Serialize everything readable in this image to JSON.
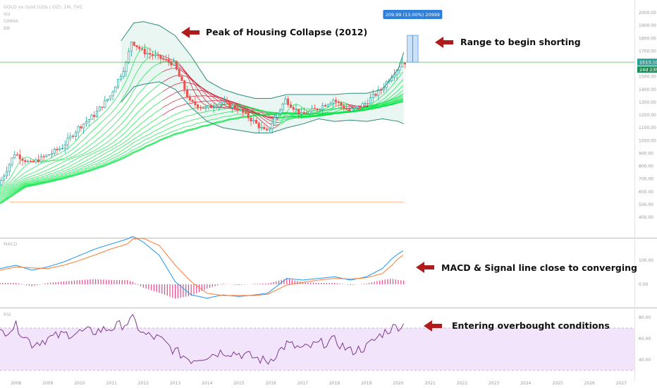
{
  "header": {
    "symbol": "GOLD vs Gold (US$ / OZ), 1M, TVC",
    "line2": "Vol",
    "line3": "GMMA",
    "line4": "BB"
  },
  "colors": {
    "up": "#26a69a",
    "down": "#ef5350",
    "ribbon_green": "#00e640",
    "ribbon_red": "#c8102e",
    "bb_line": "#2e8b7a",
    "macd": "#2196f3",
    "signal": "#ff7a33",
    "hist": "#e0488b",
    "rsi": "#7e3a8f",
    "rsi_band": "#f1e4fb",
    "arrow": "#b01c1c",
    "price_tag": "#26a69a",
    "measure": "#2f7fdc"
  },
  "price_axis": {
    "labels": [
      "2000.00",
      "1900.00",
      "1800.00",
      "1700.00",
      "1600.00",
      "1500.00",
      "1400.00",
      "1300.00",
      "1200.00",
      "1100.00",
      "1000.00",
      "900.00",
      "800.00",
      "700.00",
      "600.00",
      "500.00",
      "400.00"
    ]
  },
  "price_tag": {
    "value": "1613.10",
    "countdown": "24d 23h"
  },
  "measure_label": "209.99 (13.00%) 20999",
  "macd_panel": {
    "title": "MACD",
    "axis": [
      "100.00",
      "0.00"
    ]
  },
  "rsi_panel": {
    "title": "RSI",
    "axis": [
      "80.00",
      "60.00",
      "40.00"
    ]
  },
  "x_axis": {
    "labels": [
      "2008",
      "2009",
      "2010",
      "2011",
      "2012",
      "2013",
      "2014",
      "2015",
      "2016",
      "2017",
      "2018",
      "2019",
      "2020",
      "2021",
      "2022",
      "2023",
      "2024",
      "2025",
      "2026",
      "2027"
    ]
  },
  "annotations": {
    "peak": "Peak of Housing Collapse (2012)",
    "range": "Range to begin shorting",
    "macd": "MACD & Signal line close to converging",
    "rsi": "Entering overbought conditions"
  },
  "chart_data": {
    "type": "line",
    "title": "GOLD vs Gold (US$ / OZ), 1M, TVC",
    "x": [
      2007.5,
      2008.0,
      2008.5,
      2009.0,
      2009.5,
      2010.0,
      2010.5,
      2011.0,
      2011.5,
      2011.67,
      2012.0,
      2012.5,
      2013.0,
      2013.5,
      2014.0,
      2014.5,
      2015.0,
      2015.5,
      2015.9,
      2016.5,
      2017.0,
      2017.5,
      2018.0,
      2018.5,
      2019.0,
      2019.5,
      2019.8,
      2020.0,
      2020.17
    ],
    "series": [
      {
        "values": [
          650,
          900,
          820,
          880,
          950,
          1100,
          1200,
          1350,
          1600,
          1780,
          1700,
          1650,
          1600,
          1300,
          1250,
          1300,
          1250,
          1150,
          1060,
          1320,
          1200,
          1250,
          1320,
          1230,
          1290,
          1400,
          1500,
          1560,
          1613
        ]
      }
    ],
    "ylim": [
      400,
      2050
    ],
    "price_levels": {
      "horizontal_green": 1613.1,
      "horizontal_orange": 520
    },
    "measure": {
      "from": 1613.1,
      "to": 1823.1,
      "change": 209.99,
      "percent": 13.0
    },
    "macd": {
      "macd": [
        20,
        30,
        15,
        25,
        40,
        60,
        80,
        95,
        110,
        118,
        100,
        60,
        -20,
        -60,
        -70,
        -60,
        -65,
        -60,
        -55,
        -10,
        -15,
        -10,
        -5,
        -15,
        -5,
        20,
        50,
        65,
        75
      ],
      "signal": [
        15,
        25,
        22,
        20,
        30,
        45,
        62,
        80,
        95,
        110,
        112,
        90,
        30,
        -20,
        -55,
        -62,
        -62,
        -62,
        -58,
        -30,
        -22,
        -15,
        -10,
        -12,
        -8,
        5,
        30,
        50,
        62
      ]
    },
    "rsi": [
      65,
      72,
      55,
      60,
      64,
      66,
      67,
      70,
      75,
      78,
      64,
      60,
      48,
      40,
      44,
      48,
      46,
      42,
      38,
      55,
      50,
      55,
      58,
      48,
      52,
      65,
      70,
      72,
      73
    ]
  }
}
